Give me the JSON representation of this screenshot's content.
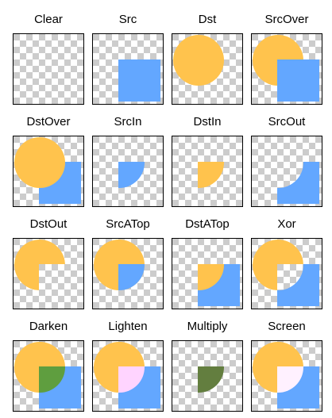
{
  "colors": {
    "dst": "#ffc34d",
    "src": "#63a7ff",
    "checker_light": "#ffffff",
    "checker_dark": "#cccccc",
    "border": "#000000",
    "darken_overlap": "#5f9e3f",
    "lighten_overlap": "#ffd4ff",
    "multiply_overlap": "#637e3f",
    "screen_overlap": "#fff1ff"
  },
  "modes": [
    {
      "label": "Clear",
      "mode": "clear"
    },
    {
      "label": "Src",
      "mode": "src"
    },
    {
      "label": "Dst",
      "mode": "dst"
    },
    {
      "label": "SrcOver",
      "mode": "srcover"
    },
    {
      "label": "DstOver",
      "mode": "dstover"
    },
    {
      "label": "SrcIn",
      "mode": "srcin"
    },
    {
      "label": "DstIn",
      "mode": "dstin"
    },
    {
      "label": "SrcOut",
      "mode": "srcout"
    },
    {
      "label": "DstOut",
      "mode": "dstout"
    },
    {
      "label": "SrcATop",
      "mode": "srcatop"
    },
    {
      "label": "DstATop",
      "mode": "dstatop"
    },
    {
      "label": "Xor",
      "mode": "xor"
    },
    {
      "label": "Darken",
      "mode": "darken"
    },
    {
      "label": "Lighten",
      "mode": "lighten"
    },
    {
      "label": "Multiply",
      "mode": "multiply"
    },
    {
      "label": "Screen",
      "mode": "screen"
    }
  ]
}
